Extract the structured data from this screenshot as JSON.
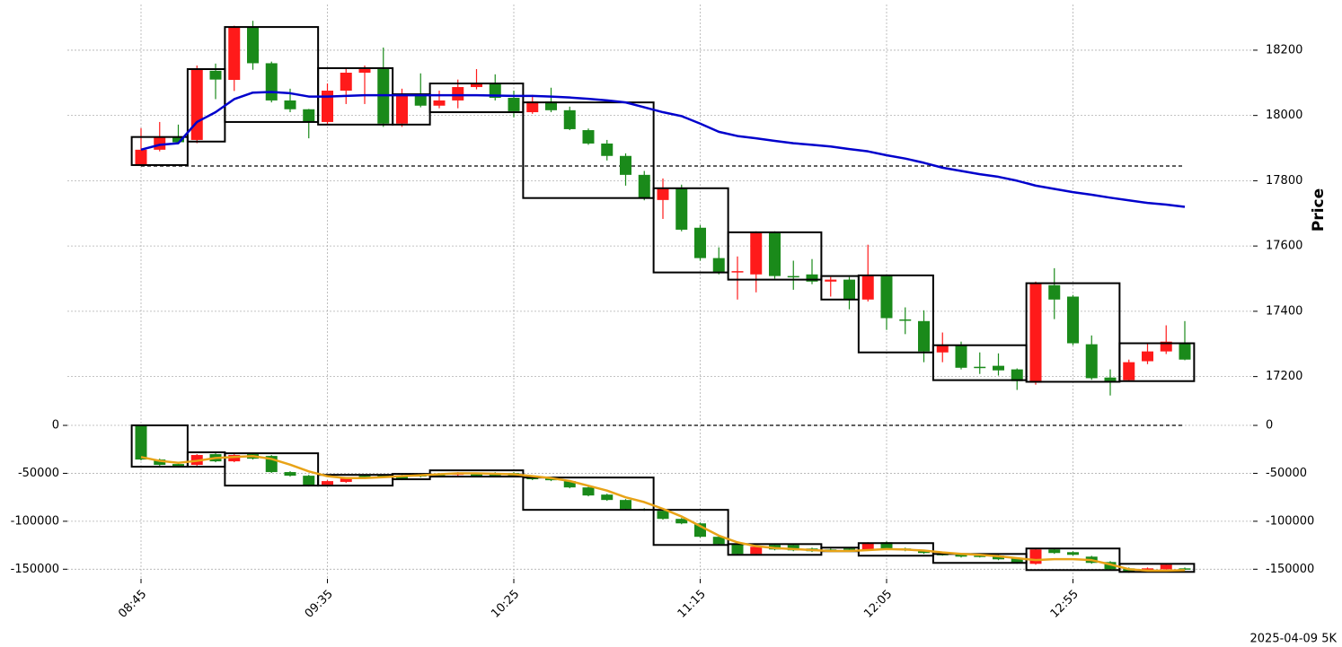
{
  "chart_data": [
    {
      "type": "candlestick",
      "ylabel": "Price",
      "grid": true,
      "ytick_sides": [
        "right"
      ],
      "ylim": [
        17100,
        18340
      ],
      "yticks": [
        17200,
        17400,
        17600,
        17800,
        18000,
        18200
      ],
      "up_color": "#ff1a1a",
      "down_color": "#1a8a1a",
      "open": [
        17848,
        17895,
        17934,
        17925,
        18137,
        18109,
        18270,
        18160,
        18046,
        18019,
        17980,
        18076,
        18131,
        18142,
        17975,
        18065,
        18030,
        18046,
        18087,
        18098,
        18054,
        18010,
        18043,
        18016,
        17955,
        17914,
        17876,
        17818,
        17741,
        17777,
        17656,
        17563,
        17521,
        17513,
        17642,
        17508,
        17513,
        17491,
        17497,
        17436,
        17508,
        17375,
        17370,
        17274,
        17296,
        17230,
        17233,
        17222,
        17181,
        17480,
        17445,
        17299,
        17197,
        17189,
        17247,
        17277,
        17304
      ],
      "high": [
        17961,
        17980,
        17972,
        18153,
        18159,
        18275,
        18290,
        18165,
        18082,
        18020,
        18098,
        18145,
        18153,
        18208,
        18082,
        18129,
        18076,
        18110,
        18142,
        18126,
        18076,
        18063,
        18085,
        18027,
        17960,
        17925,
        17884,
        17830,
        17807,
        17788,
        17664,
        17596,
        17568,
        17645,
        17645,
        17555,
        17560,
        17505,
        17505,
        17604,
        17510,
        17412,
        17403,
        17335,
        17307,
        17274,
        17271,
        17225,
        17491,
        17532,
        17450,
        17326,
        17222,
        17252,
        17302,
        17357,
        17370
      ],
      "low": [
        17845,
        17890,
        17912,
        17915,
        18050,
        18075,
        18140,
        18040,
        18010,
        17930,
        17970,
        18035,
        18035,
        17965,
        17965,
        18025,
        18022,
        18022,
        18080,
        18046,
        17994,
        18005,
        18010,
        17955,
        17910,
        17862,
        17785,
        17740,
        17683,
        17645,
        17555,
        17513,
        17436,
        17458,
        17500,
        17466,
        17483,
        17445,
        17406,
        17430,
        17343,
        17330,
        17244,
        17244,
        17222,
        17208,
        17203,
        17159,
        17175,
        17376,
        17296,
        17190,
        17142,
        17184,
        17238,
        17269,
        17250
      ],
      "close": [
        17895,
        17934,
        17918,
        18140,
        18110,
        18270,
        18160,
        18046,
        18019,
        17980,
        18076,
        18131,
        18142,
        17975,
        18065,
        18030,
        18046,
        18087,
        18098,
        18054,
        18013,
        18043,
        18016,
        17958,
        17914,
        17876,
        17818,
        17747,
        17777,
        17650,
        17563,
        17521,
        17523,
        17642,
        17508,
        17505,
        17491,
        17497,
        17436,
        17508,
        17379,
        17373,
        17277,
        17296,
        17227,
        17228,
        17219,
        17186,
        17486,
        17436,
        17302,
        17195,
        17184,
        17244,
        17277,
        17307,
        17252
      ],
      "lines": [
        {
          "color": "#0000cc",
          "values": [
            17895,
            17910,
            17915,
            17980,
            18010,
            18050,
            18070,
            18072,
            18068,
            18058,
            18058,
            18060,
            18062,
            18062,
            18062,
            18062,
            18062,
            18062,
            18062,
            18061,
            18060,
            18060,
            18058,
            18055,
            18051,
            18046,
            18040,
            18025,
            18010,
            17998,
            17975,
            17950,
            17937,
            17930,
            17922,
            17915,
            17910,
            17905,
            17897,
            17890,
            17878,
            17868,
            17855,
            17840,
            17830,
            17820,
            17812,
            17800,
            17785,
            17775,
            17765,
            17757,
            17748,
            17740,
            17732,
            17727,
            17720
          ]
        }
      ],
      "hline": {
        "value": 17845,
        "style": "dashed"
      },
      "boxes": [
        {
          "bars": 3,
          "high": 17934,
          "low": 17848
        },
        {
          "bars": 2,
          "high": 18142,
          "low": 17920
        },
        {
          "bars": 5,
          "high": 18271,
          "low": 17980
        },
        {
          "bars": 4,
          "high": 18145,
          "low": 17972
        },
        {
          "bars": 2,
          "high": 18065,
          "low": 17972
        },
        {
          "bars": 5,
          "high": 18098,
          "low": 18010
        },
        {
          "bars": 7,
          "high": 18040,
          "low": 17747
        },
        {
          "bars": 4,
          "high": 17777,
          "low": 17519
        },
        {
          "bars": 5,
          "high": 17642,
          "low": 17497
        },
        {
          "bars": 2,
          "high": 17508,
          "low": 17436
        },
        {
          "bars": 4,
          "high": 17510,
          "low": 17274
        },
        {
          "bars": 5,
          "high": 17296,
          "low": 17189
        },
        {
          "bars": 5,
          "high": 17486,
          "low": 17184
        },
        {
          "bars": 4,
          "high": 17302,
          "low": 17186
        }
      ]
    },
    {
      "type": "candlestick",
      "grid": true,
      "ytick_sides": [
        "left",
        "right"
      ],
      "ylim": [
        -160000,
        15000
      ],
      "yticks": [
        -150000,
        -100000,
        -50000,
        0
      ],
      "up_color": "#ff1a1a",
      "down_color": "#1a8a1a",
      "categories": [
        "08:45",
        null,
        null,
        null,
        null,
        null,
        null,
        null,
        null,
        null,
        "09:35",
        null,
        null,
        null,
        null,
        null,
        null,
        null,
        null,
        null,
        "10:25",
        null,
        null,
        null,
        null,
        null,
        null,
        null,
        null,
        null,
        "11:15",
        null,
        null,
        null,
        null,
        null,
        null,
        null,
        null,
        null,
        "12:05",
        null,
        null,
        null,
        null,
        null,
        null,
        null,
        null,
        null,
        "12:55",
        null,
        null,
        null,
        null,
        null,
        null
      ],
      "note": "2025-04-09 5K",
      "open": [
        0,
        -35600,
        -40300,
        -41200,
        -30000,
        -37500,
        -30000,
        -31900,
        -48700,
        -52500,
        -61900,
        -59000,
        -52500,
        -52000,
        -52500,
        -51600,
        -50600,
        -51600,
        -50600,
        -49700,
        -49700,
        -53400,
        -55300,
        -58100,
        -64700,
        -72200,
        -77800,
        -87200,
        -89100,
        -97500,
        -102200,
        -116200,
        -123800,
        -134100,
        -124700,
        -124700,
        -128400,
        -129400,
        -128400,
        -129400,
        -121900,
        -128400,
        -131200,
        -134100,
        -135000,
        -135900,
        -135900,
        -138700,
        -144400,
        -129400,
        -132200,
        -136900,
        -142500,
        -149100,
        -151900,
        -150000,
        -149100
      ],
      "high": [
        0,
        -34700,
        -39400,
        -30000,
        -29100,
        -30000,
        -29100,
        -31000,
        -47800,
        -51600,
        -57200,
        -54400,
        -51600,
        -51100,
        -51600,
        -50700,
        -49700,
        -48800,
        -49700,
        -48800,
        -48800,
        -52500,
        -54400,
        -57200,
        -63800,
        -71300,
        -76900,
        -86300,
        -88200,
        -96600,
        -101300,
        -115300,
        -122900,
        -125700,
        -123800,
        -123800,
        -127500,
        -128500,
        -127500,
        -121900,
        -121000,
        -127500,
        -130300,
        -133200,
        -134100,
        -135000,
        -135000,
        -137800,
        -128500,
        -128500,
        -131300,
        -136000,
        -141600,
        -148200,
        -148200,
        -144400,
        -148200
      ],
      "low": [
        -36500,
        -42100,
        -44000,
        -42100,
        -38400,
        -38400,
        -35600,
        -49600,
        -53400,
        -63700,
        -62800,
        -59900,
        -55300,
        -53900,
        -57100,
        -54300,
        -53400,
        -52500,
        -53400,
        -53400,
        -54300,
        -57100,
        -58100,
        -65600,
        -74000,
        -78700,
        -88100,
        -89000,
        -98400,
        -103100,
        -117100,
        -124700,
        -135000,
        -135000,
        -130300,
        -131200,
        -132100,
        -131200,
        -130300,
        -130300,
        -129300,
        -131200,
        -134000,
        -135900,
        -137800,
        -137800,
        -140600,
        -144300,
        -145300,
        -134000,
        -135900,
        -144300,
        -150900,
        -153700,
        -152800,
        -150900,
        -150900
      ],
      "close": [
        -35600,
        -41200,
        -43100,
        -30900,
        -37500,
        -30900,
        -34700,
        -48700,
        -52500,
        -62800,
        -58100,
        -55300,
        -54400,
        -53000,
        -56200,
        -53400,
        -52500,
        -49700,
        -52500,
        -52500,
        -53400,
        -56200,
        -57200,
        -64700,
        -73100,
        -77800,
        -87200,
        -88100,
        -97500,
        -102200,
        -116200,
        -123800,
        -134100,
        -126600,
        -129400,
        -130300,
        -131200,
        -130300,
        -129400,
        -122800,
        -128400,
        -130300,
        -133100,
        -135000,
        -136900,
        -136900,
        -139700,
        -143400,
        -129400,
        -133100,
        -135000,
        -143400,
        -150000,
        -152800,
        -149100,
        -145300,
        -150000
      ],
      "lines": [
        {
          "color": "#e8a317",
          "values": [
            -33000,
            -37000,
            -39000,
            -37000,
            -34000,
            -33000,
            -32000,
            -35000,
            -41000,
            -48000,
            -53000,
            -55000,
            -55000,
            -54000,
            -53000,
            -52000,
            -51000,
            -50000,
            -50000,
            -50500,
            -51000,
            -53000,
            -55000,
            -58000,
            -63000,
            -68000,
            -75000,
            -80000,
            -87000,
            -95000,
            -105000,
            -115000,
            -122000,
            -126000,
            -128000,
            -129000,
            -130000,
            -131000,
            -131000,
            -130000,
            -129000,
            -129500,
            -130500,
            -132500,
            -134000,
            -135000,
            -136500,
            -138500,
            -140500,
            -139500,
            -139500,
            -140500,
            -145000,
            -150000,
            -151500,
            -151500,
            -151000
          ]
        }
      ],
      "hline": {
        "value": 0,
        "style": "dashed"
      },
      "boxes": [
        {
          "bars": 3,
          "high": 0,
          "low": -43100
        },
        {
          "bars": 2,
          "high": -28100,
          "low": -43100
        },
        {
          "bars": 5,
          "high": -29100,
          "low": -62800
        },
        {
          "bars": 4,
          "high": -51600,
          "low": -62800
        },
        {
          "bars": 2,
          "high": -50600,
          "low": -56200
        },
        {
          "bars": 5,
          "high": -46900,
          "low": -53400
        },
        {
          "bars": 7,
          "high": -54400,
          "low": -88100
        },
        {
          "bars": 4,
          "high": -88100,
          "low": -124700
        },
        {
          "bars": 5,
          "high": -123800,
          "low": -135000
        },
        {
          "bars": 2,
          "high": -127500,
          "low": -131200
        },
        {
          "bars": 4,
          "high": -122800,
          "low": -135900
        },
        {
          "bars": 5,
          "high": -134100,
          "low": -143400
        },
        {
          "bars": 5,
          "high": -128400,
          "low": -150900
        },
        {
          "bars": 4,
          "high": -144400,
          "low": -152800
        }
      ]
    }
  ]
}
